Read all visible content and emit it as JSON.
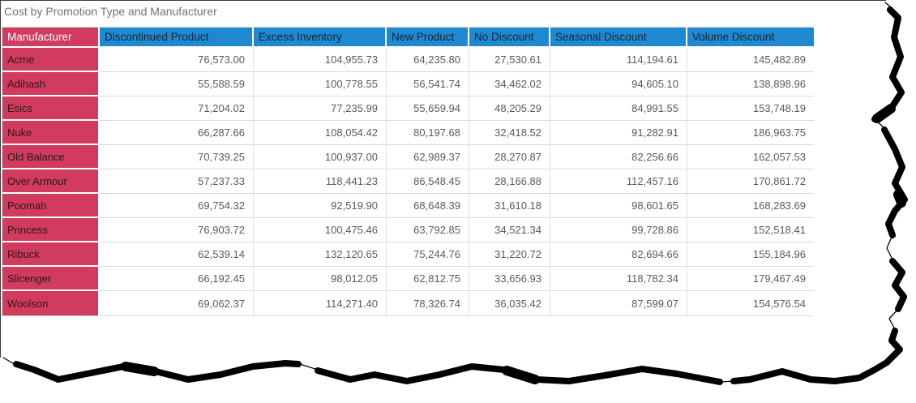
{
  "visual": {
    "title": "Cost by Promotion Type and Manufacturer"
  },
  "colors": {
    "header_bg": "#1e89d1",
    "header_text": "#152636",
    "row_header_bg": "#d13b5e",
    "row_header_header_text": "#ffffff",
    "row_header_text": "#2d161e",
    "value_text": "#5a5a5a",
    "title_text": "#737373",
    "gridline": "#d9d9d9",
    "torn_edge": "#000000"
  },
  "table": {
    "columns": [
      "Manufacturer",
      "Discontinued Product",
      "Excess Inventory",
      "New Product",
      "No Discount",
      "Seasonal Discount",
      "Volume Discount"
    ],
    "rows": [
      {
        "manufacturer": "Acme",
        "values": [
          "76,573.00",
          "104,955.73",
          "64,235.80",
          "27,530.61",
          "114,194.61",
          "145,482.89"
        ]
      },
      {
        "manufacturer": "Adihash",
        "values": [
          "55,588.59",
          "100,778.55",
          "56,541.74",
          "34,462.02",
          "94,605.10",
          "138,898.96"
        ]
      },
      {
        "manufacturer": "Esics",
        "values": [
          "71,204.02",
          "77,235.99",
          "55,659.94",
          "48,205.29",
          "84,991.55",
          "153,748.19"
        ]
      },
      {
        "manufacturer": "Nuke",
        "values": [
          "66,287.66",
          "108,054.42",
          "80,197.68",
          "32,418.52",
          "91,282.91",
          "186,963.75"
        ]
      },
      {
        "manufacturer": "Old Balance",
        "values": [
          "70,739.25",
          "100,937.00",
          "62,989.37",
          "28,270.87",
          "82,256.66",
          "162,057.53"
        ]
      },
      {
        "manufacturer": "Over Armour",
        "values": [
          "57,237.33",
          "118,441.23",
          "86,548.45",
          "28,166.88",
          "112,457.16",
          "170,861.72"
        ]
      },
      {
        "manufacturer": "Poomah",
        "values": [
          "69,754.32",
          "92,519.90",
          "68,648.39",
          "31,610.18",
          "98,601.65",
          "168,283.69"
        ]
      },
      {
        "manufacturer": "Princess",
        "values": [
          "76,903.72",
          "100,475.46",
          "63,792.85",
          "34,521.34",
          "99,728.86",
          "152,518.41"
        ]
      },
      {
        "manufacturer": "Ribuck",
        "values": [
          "62,539.14",
          "132,120.65",
          "75,244.76",
          "31,220.72",
          "82,694.66",
          "155,184.96"
        ]
      },
      {
        "manufacturer": "Slicenger",
        "values": [
          "66,192.45",
          "98,012.05",
          "62,812.75",
          "33,656.93",
          "118,782.34",
          "179,467.49"
        ]
      },
      {
        "manufacturer": "Woolson",
        "values": [
          "69,062.37",
          "114,271.40",
          "78,326.74",
          "36,035.42",
          "87,599.07",
          "154,576.54"
        ]
      }
    ]
  },
  "chart_data": {
    "type": "table",
    "title": "Cost by Promotion Type and Manufacturer",
    "categories": [
      "Acme",
      "Adihash",
      "Esics",
      "Nuke",
      "Old Balance",
      "Over Armour",
      "Poomah",
      "Princess",
      "Ribuck",
      "Slicenger",
      "Woolson"
    ],
    "series": [
      {
        "name": "Discontinued Product",
        "values": [
          76573.0,
          55588.59,
          71204.02,
          66287.66,
          70739.25,
          57237.33,
          69754.32,
          76903.72,
          62539.14,
          66192.45,
          69062.37
        ]
      },
      {
        "name": "Excess Inventory",
        "values": [
          104955.73,
          100778.55,
          77235.99,
          108054.42,
          100937.0,
          118441.23,
          92519.9,
          100475.46,
          132120.65,
          98012.05,
          114271.4
        ]
      },
      {
        "name": "New Product",
        "values": [
          64235.8,
          56541.74,
          55659.94,
          80197.68,
          62989.37,
          86548.45,
          68648.39,
          63792.85,
          75244.76,
          62812.75,
          78326.74
        ]
      },
      {
        "name": "No Discount",
        "values": [
          27530.61,
          34462.02,
          48205.29,
          32418.52,
          28270.87,
          28166.88,
          31610.18,
          34521.34,
          31220.72,
          33656.93,
          36035.42
        ]
      },
      {
        "name": "Seasonal Discount",
        "values": [
          114194.61,
          94605.1,
          84991.55,
          91282.91,
          82256.66,
          112457.16,
          98601.65,
          99728.86,
          82694.66,
          118782.34,
          87599.07
        ]
      },
      {
        "name": "Volume Discount",
        "values": [
          145482.89,
          138898.96,
          153748.19,
          186963.75,
          162057.53,
          170861.72,
          168283.69,
          152518.41,
          155184.96,
          179467.49,
          154576.54
        ]
      }
    ]
  }
}
